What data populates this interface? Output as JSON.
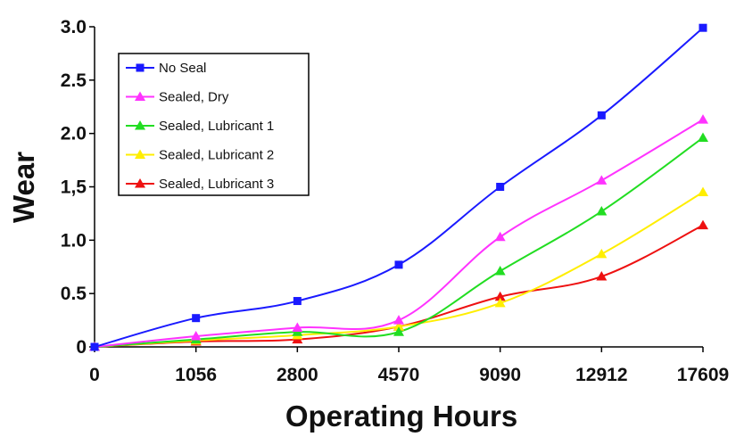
{
  "chart_data": {
    "type": "line",
    "title": "",
    "xlabel": "Operating Hours",
    "ylabel": "Wear",
    "categories": [
      "0",
      "1056",
      "2800",
      "4570",
      "9090",
      "12912",
      "17609"
    ],
    "ylim": [
      0,
      3.0
    ],
    "yticks": [
      "0",
      "0.5",
      "1.0",
      "1,5",
      "2.0",
      "2.5",
      "3.0"
    ],
    "grid": false,
    "legend_position": "top-left",
    "series": [
      {
        "name": "No Seal",
        "color": "#1a1aff",
        "marker": "square",
        "values": [
          0,
          0.27,
          0.43,
          0.77,
          1.5,
          2.17,
          2.99
        ]
      },
      {
        "name": "Sealed, Dry",
        "color": "#ff33ff",
        "marker": "triangle",
        "values": [
          0,
          0.1,
          0.18,
          0.25,
          1.03,
          1.56,
          2.13
        ]
      },
      {
        "name": "Sealed, Lubricant 1",
        "color": "#22dd22",
        "marker": "triangle",
        "values": [
          0,
          0.07,
          0.14,
          0.14,
          0.71,
          1.27,
          1.96
        ]
      },
      {
        "name": "Sealed, Lubricant 2",
        "color": "#ffee00",
        "marker": "triangle",
        "values": [
          0,
          0.06,
          0.11,
          0.19,
          0.41,
          0.87,
          1.45
        ]
      },
      {
        "name": "Sealed, Lubricant 3",
        "color": "#ee1111",
        "marker": "triangle",
        "values": [
          0,
          0.05,
          0.07,
          0.19,
          0.47,
          0.66,
          1.14
        ]
      }
    ]
  }
}
